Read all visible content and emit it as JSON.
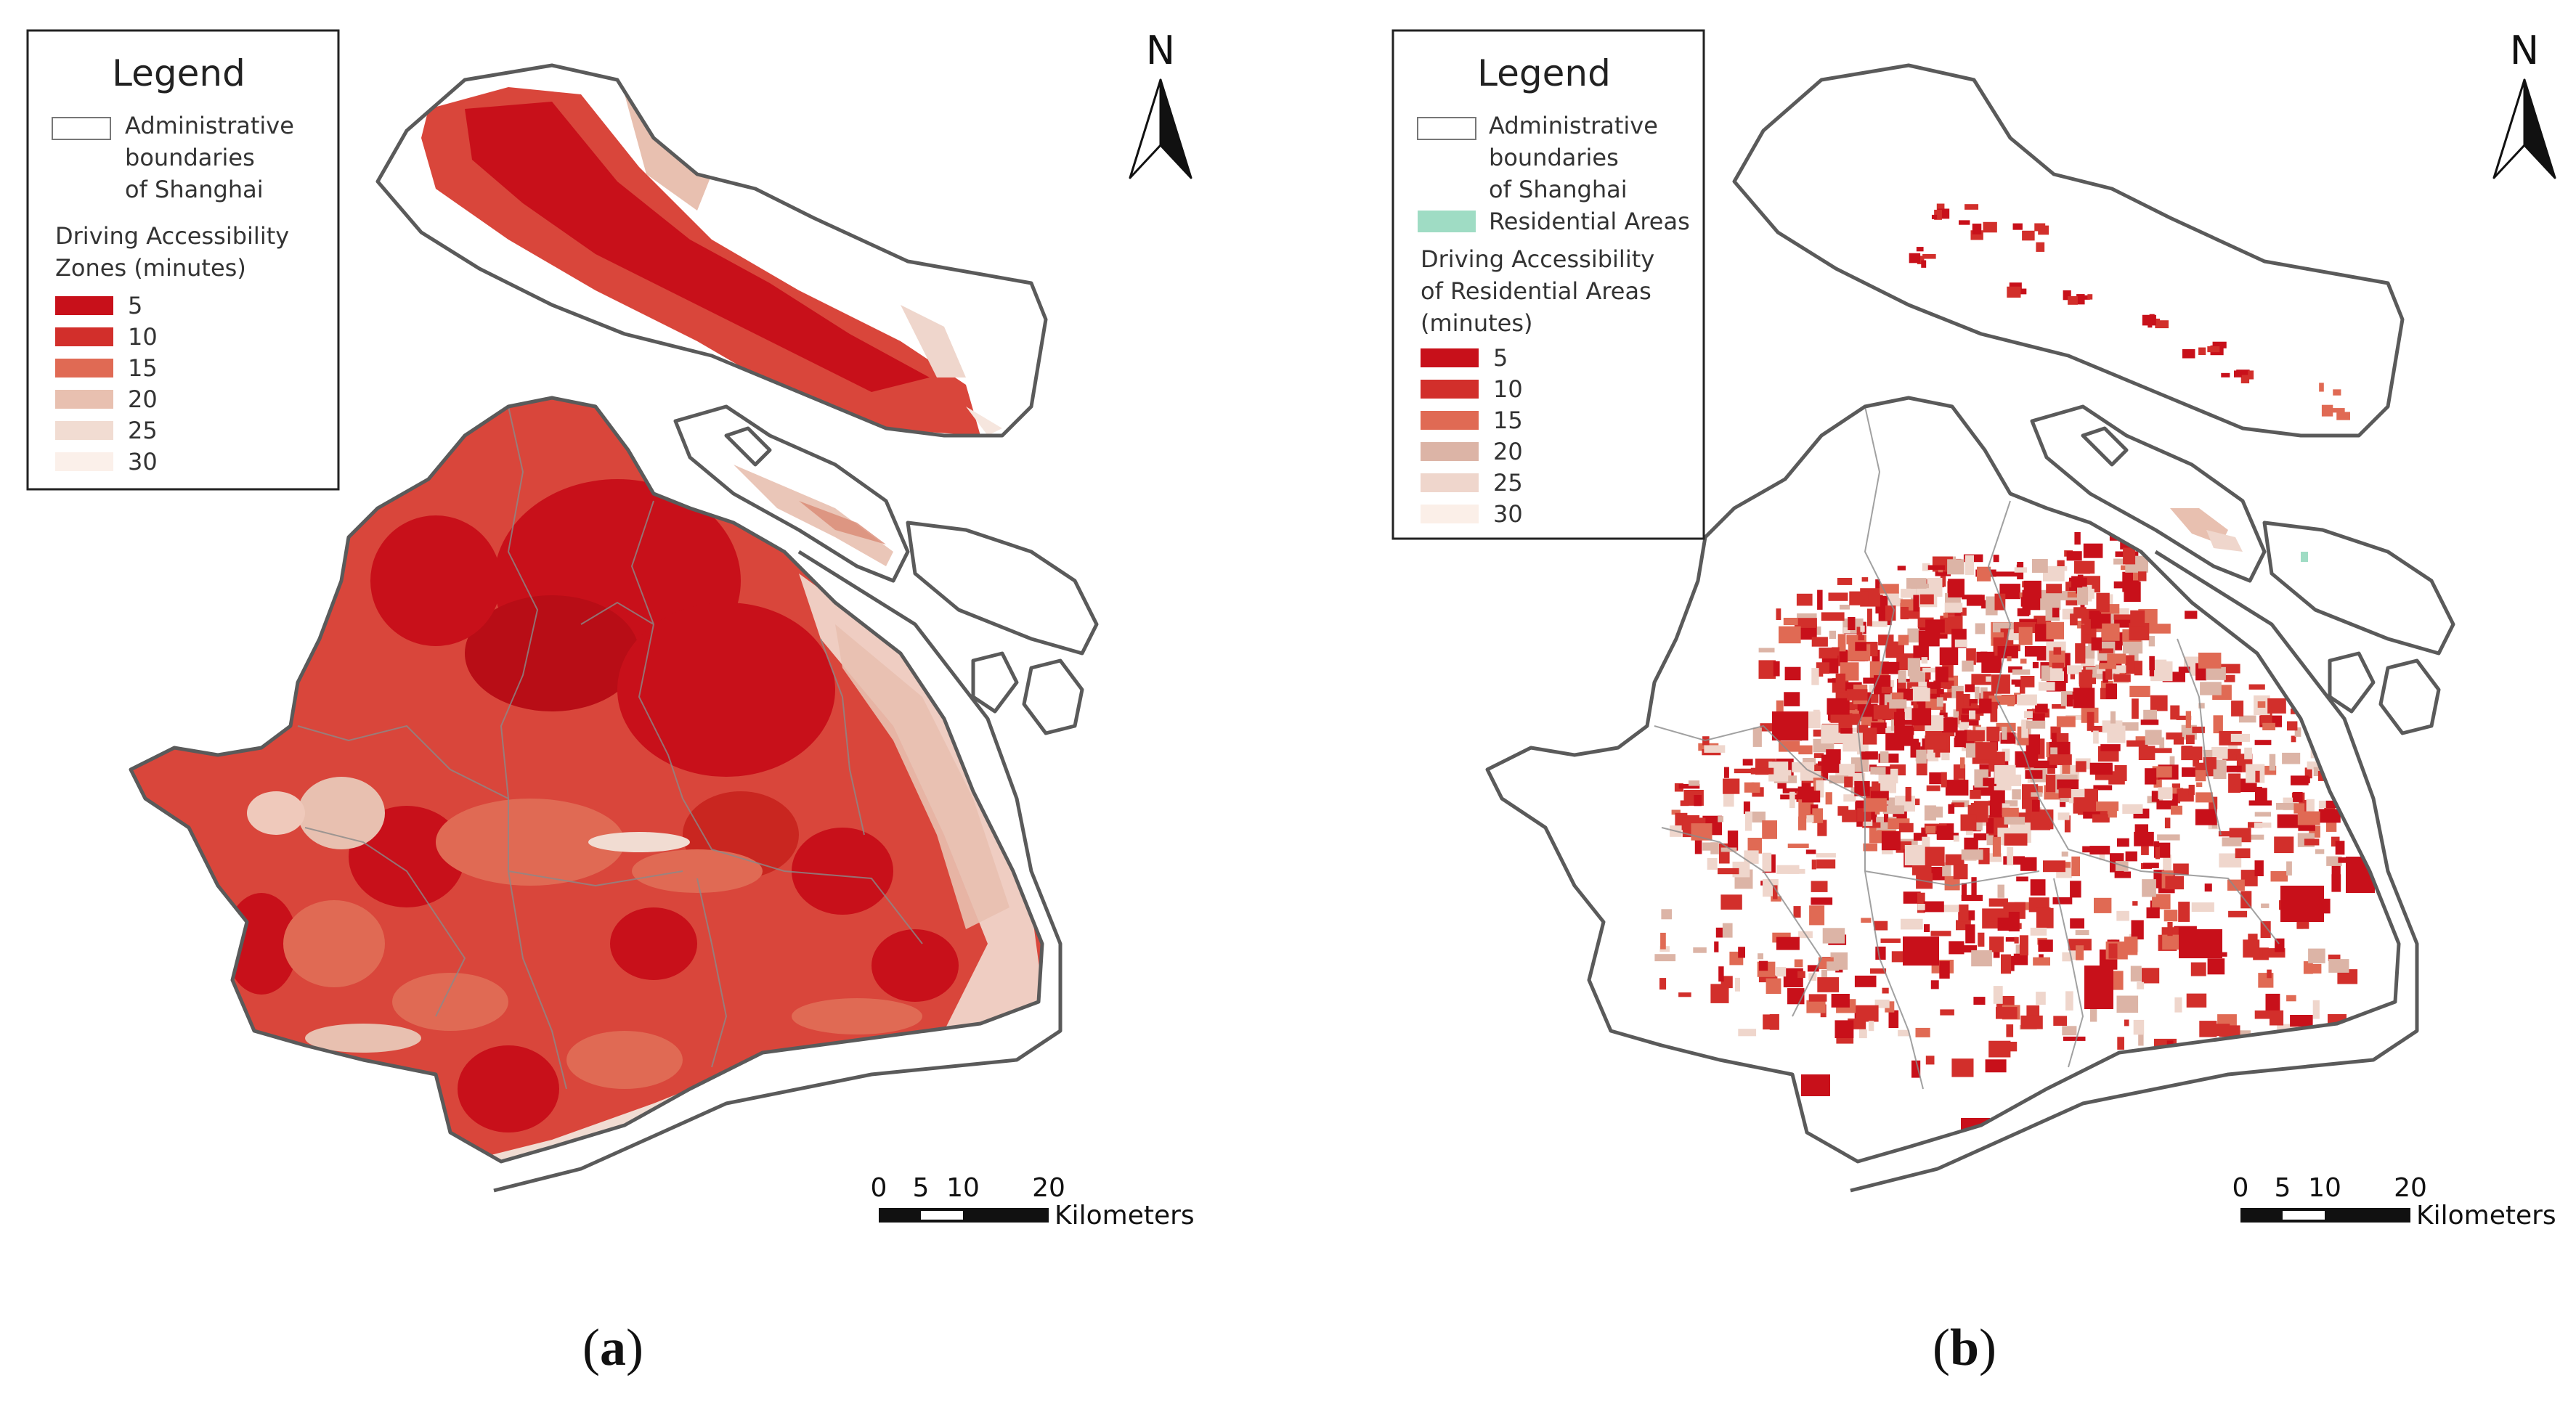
{
  "panels": [
    {
      "id": "a",
      "label_letter": "a",
      "label_open": "(",
      "label_close": ")",
      "legend": {
        "title": "Legend",
        "boundary_lines": [
          "Administrative",
          "boundaries",
          "of Shanghai"
        ],
        "ramp_title_lines": [
          "Driving Accessibility",
          "Zones (minutes)"
        ],
        "classes": [
          {
            "value": "5",
            "color": "#c8101a"
          },
          {
            "value": "10",
            "color": "#d22f2b"
          },
          {
            "value": "15",
            "color": "#e06a54"
          },
          {
            "value": "20",
            "color": "#e8c0b0"
          },
          {
            "value": "25",
            "color": "#f1dcd2"
          },
          {
            "value": "30",
            "color": "#fbf0ea"
          }
        ]
      },
      "north": "N",
      "scale": {
        "ticks": [
          "0",
          "5",
          "10",
          "20"
        ],
        "unit": "Kilometers"
      }
    },
    {
      "id": "b",
      "label_letter": "b",
      "label_open": "(",
      "label_close": ")",
      "legend": {
        "title": "Legend",
        "boundary_lines": [
          "Administrative",
          "boundaries",
          "of Shanghai"
        ],
        "residential_label": "Residential Areas",
        "residential_color": "#9fdcc4",
        "ramp_title_lines": [
          "Driving Accessibility",
          "of Residential Areas",
          "(minutes)"
        ],
        "classes": [
          {
            "value": "5",
            "color": "#c8101a"
          },
          {
            "value": "10",
            "color": "#d22f2b"
          },
          {
            "value": "15",
            "color": "#e06a54"
          },
          {
            "value": "20",
            "color": "#dcb4a6"
          },
          {
            "value": "25",
            "color": "#efd6cc"
          },
          {
            "value": "30",
            "color": "#fbefe8"
          }
        ]
      },
      "north": "N",
      "scale": {
        "ticks": [
          "0",
          "5",
          "10",
          "20"
        ],
        "unit": "Kilometers"
      }
    }
  ],
  "colors": {
    "boundary": "#5a5a5a",
    "district_lines": "#8a8a8a",
    "text": "#222222"
  }
}
